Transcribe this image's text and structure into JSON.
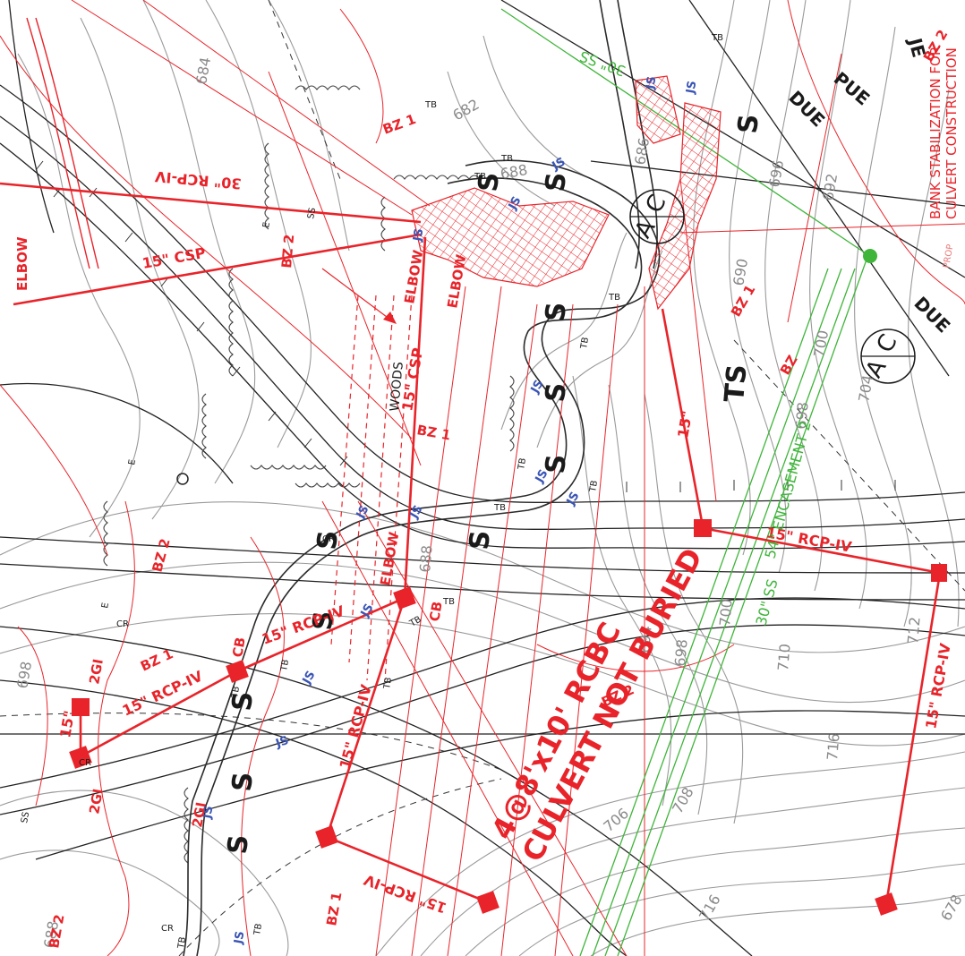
{
  "plan": {
    "notes": {
      "bank_line1": "BANK STABILIZATION FOR",
      "bank_line2": "CULVERT CONSTRUCTION",
      "culvert_line1": "4@8'x10' RCBC",
      "culvert_line2": "CULVERT NOT BURIED"
    },
    "pipes": {
      "rcp30": "30\" RCP-IV",
      "csp15_a": "15\" CSP",
      "csp15_b": "15\" CSP",
      "rcp15_a": "15\" RCP-IV",
      "rcp15_b": "15\" RCP-IV",
      "rcp15_c": "15\" RCP-IV",
      "rcp15_d": "15\" RCP-IV",
      "rcp15_e": "15\" RCP-IV",
      "rcp15_f": "15\" RCP-IV",
      "p15_a": "15\"",
      "p15_b": "15\"",
      "encasement": "54\" ENCASEMENT 2",
      "ss30": "30\" SS",
      "ss30_top": "30\" SS"
    },
    "labels": {
      "elbow1": "ELBOW",
      "elbow2": "ELBOW",
      "elbow3": "ELBOW",
      "elbow4": "ELBOW",
      "woods": "WOODS",
      "cb1": "CB",
      "cb2": "CB",
      "gi1": "2GI",
      "gi2": "2GI",
      "gi3": "2GI",
      "bz1_a": "BZ 1",
      "bz1_b": "BZ 1",
      "bz1_c": "BZ 1",
      "bz1_d": "BZ 1",
      "bz1_e": "BZ 1",
      "bz2_a": "BZ 2",
      "bz2_b": "BZ 2",
      "bz2_c": "BZ 2",
      "bz2_d": "BZ 2",
      "bz_e": "BZ",
      "due1": "DUE",
      "due2": "DUE",
      "pue": "PUE",
      "je": "JE",
      "ts": "TS",
      "callout_top": "C",
      "callout_bot": "A",
      "callout2_top": "C",
      "callout2_bot": "A",
      "prop": "PROP",
      "s": "S",
      "js": "JS",
      "tb": "TB",
      "cr": "CR",
      "e": "E",
      "ss": "SS"
    },
    "contours": [
      "684",
      "682",
      "688",
      "690",
      "692",
      "694",
      "696",
      "698",
      "700",
      "704",
      "706",
      "708",
      "710",
      "712",
      "716",
      "678",
      "686",
      "698"
    ]
  }
}
